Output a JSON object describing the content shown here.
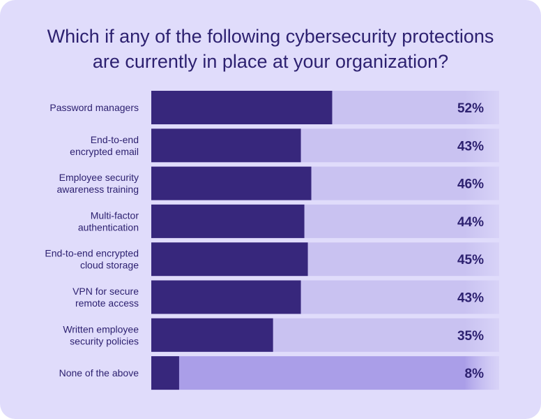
{
  "title_lines": [
    "Which if any of the following cybersecurity protections",
    "are currently in place at your organization?"
  ],
  "colors": {
    "background": "#e0dcfb",
    "bar": "#37277c",
    "track": "#c9c2f1",
    "track_highlight": "#aa9ee8",
    "label": "#2d2170",
    "value": "#2d2170"
  },
  "chart_data": {
    "type": "bar",
    "orientation": "horizontal",
    "title": "Which if any of the following cybersecurity protections are currently in place at your organization?",
    "categories": [
      [
        "Password managers"
      ],
      [
        "End-to-end",
        "encrypted email"
      ],
      [
        "Employee security",
        "awareness training"
      ],
      [
        "Multi-factor",
        "authentication"
      ],
      [
        "End-to-end encrypted",
        "cloud storage"
      ],
      [
        "VPN for secure",
        "remote access"
      ],
      [
        "Written employee",
        "security policies"
      ],
      [
        "None of the above"
      ]
    ],
    "values": [
      52,
      43,
      46,
      44,
      45,
      43,
      35,
      8
    ],
    "value_labels": [
      "52%",
      "43%",
      "46%",
      "44%",
      "45%",
      "43%",
      "35%",
      "8%"
    ],
    "unit": "%",
    "xlim": [
      0,
      100
    ],
    "grid": false,
    "legend": "none"
  }
}
